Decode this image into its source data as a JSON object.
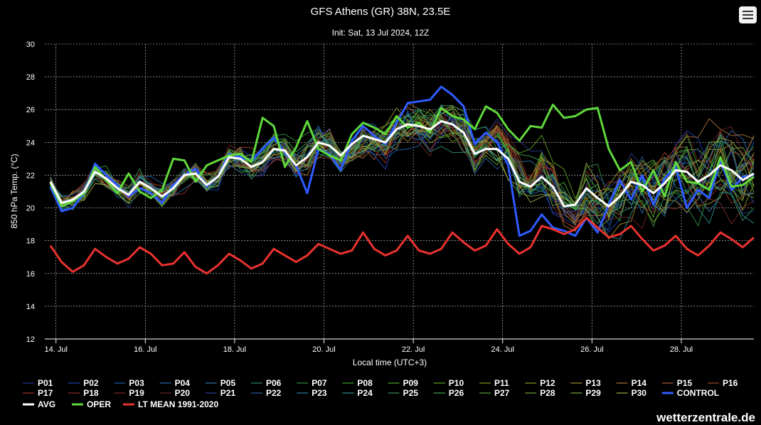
{
  "chart_data": {
    "type": "line",
    "title": "GFS Athens (GR) 38N, 23.5E",
    "subtitle": "Init: Sat, 13 Jul 2024, 12Z",
    "xlabel": "Local time (UTC+3)",
    "ylabel": "850 hPa Temp. (°C)",
    "ylim": [
      12,
      30
    ],
    "yticks": [
      12,
      14,
      16,
      18,
      20,
      22,
      24,
      26,
      28,
      30
    ],
    "xrange_days": [
      13.75,
      29.625
    ],
    "xtick_days": [
      14,
      16,
      18,
      20,
      22,
      24,
      26,
      28
    ],
    "xtick_labels": [
      "14. Jul",
      "16. Jul",
      "18. Jul",
      "20. Jul",
      "22. Jul",
      "24. Jul",
      "26. Jul",
      "28. Jul"
    ],
    "grid": true,
    "legend_position": "bottom",
    "x_start_day": 13.875,
    "x_step_days": 0.25,
    "series_highlight": [
      {
        "name": "AVG",
        "color": "#ffffff",
        "values": [
          21.6,
          20.3,
          20.5,
          21.0,
          22.2,
          21.8,
          21.2,
          20.8,
          21.6,
          21.2,
          20.7,
          21.2,
          22.0,
          22.1,
          21.4,
          21.9,
          23.1,
          23.0,
          22.5,
          22.8,
          23.6,
          23.5,
          22.6,
          23.1,
          24.0,
          23.8,
          23.2,
          23.9,
          24.4,
          24.2,
          24.0,
          24.8,
          25.1,
          25.0,
          24.8,
          25.3,
          25.1,
          24.6,
          23.3,
          23.6,
          23.6,
          23.0,
          21.6,
          21.3,
          21.9,
          21.3,
          20.1,
          20.2,
          21.2,
          20.6,
          20.1,
          20.7,
          21.6,
          21.4,
          20.9,
          21.5,
          22.3,
          22.2,
          21.6,
          22.0,
          22.6,
          22.3,
          21.7,
          22.1
        ]
      },
      {
        "name": "OPER",
        "color": "#5fd93a",
        "values": [
          21.5,
          20.1,
          20.4,
          20.9,
          22.5,
          21.7,
          20.9,
          22.1,
          21.0,
          20.6,
          21.1,
          23.0,
          22.9,
          21.6,
          22.6,
          22.9,
          23.2,
          23.3,
          22.8,
          25.5,
          25.0,
          22.5,
          23.7,
          25.3,
          23.6,
          23.2,
          22.9,
          24.5,
          25.2,
          24.9,
          24.5,
          25.6,
          24.9,
          25.2,
          24.6,
          26.1,
          25.6,
          25.4,
          24.8,
          26.2,
          25.8,
          24.8,
          24.1,
          25.0,
          24.9,
          26.3,
          25.5,
          25.6,
          26.0,
          26.1,
          23.6,
          22.3,
          22.8,
          21.0,
          22.3,
          20.7,
          22.8,
          21.6,
          21.5,
          21.1,
          23.1,
          21.3,
          21.4,
          21.9
        ]
      },
      {
        "name": "CONTROL",
        "color": "#2f5bff",
        "values": [
          21.3,
          19.8,
          20.0,
          20.9,
          22.7,
          22.0,
          21.4,
          20.7,
          21.2,
          20.9,
          20.3,
          21.4,
          22.0,
          22.4,
          21.3,
          21.9,
          23.3,
          23.1,
          22.9,
          23.6,
          24.3,
          23.4,
          22.6,
          20.9,
          23.6,
          23.3,
          22.3,
          24.1,
          25.0,
          24.4,
          23.9,
          25.2,
          26.4,
          26.5,
          26.6,
          27.4,
          26.9,
          26.2,
          23.9,
          24.6,
          24.0,
          22.6,
          18.3,
          18.6,
          19.6,
          18.8,
          18.6,
          18.3,
          19.4,
          18.5,
          20.2,
          21.7,
          20.5,
          22.0,
          20.2,
          21.8,
          22.5,
          20.0,
          21.1,
          20.6,
          22.9,
          21.1,
          21.9,
          22.0
        ]
      },
      {
        "name": "LT MEAN 1991-2020",
        "color": "#e8322f",
        "values": [
          17.7,
          16.7,
          16.1,
          16.5,
          17.5,
          17.0,
          16.6,
          16.9,
          17.6,
          17.2,
          16.5,
          16.6,
          17.3,
          16.4,
          16.0,
          16.5,
          17.2,
          16.8,
          16.3,
          16.6,
          17.5,
          17.1,
          16.7,
          17.1,
          17.8,
          17.5,
          17.2,
          17.4,
          18.5,
          17.5,
          17.1,
          17.4,
          18.3,
          17.4,
          17.2,
          17.5,
          18.5,
          17.9,
          17.4,
          17.7,
          18.7,
          17.8,
          17.2,
          17.6,
          18.9,
          18.7,
          18.4,
          18.7,
          19.4,
          18.8,
          18.2,
          18.4,
          18.9,
          18.1,
          17.4,
          17.7,
          18.3,
          17.5,
          17.1,
          17.7,
          18.5,
          18.1,
          17.6,
          18.2
        ]
      }
    ],
    "member_colors": [
      "#1f3a93",
      "#1e40af",
      "#1e5aa8",
      "#2563a8",
      "#2f6fa0",
      "#2d8a6e",
      "#2e8b3c",
      "#3a9a2a",
      "#4aa028",
      "#5a9c20",
      "#7a9a20",
      "#8a9028",
      "#9a8628",
      "#a07030",
      "#a05a30",
      "#a04a30",
      "#a03a28",
      "#8e2e28",
      "#7a2828",
      "#6a2424",
      "#2a3a8a",
      "#2a5a9a",
      "#2a7a9a",
      "#2a8a8a",
      "#3a8a5a",
      "#3aa04a",
      "#5aa03a",
      "#6aa03a",
      "#7aa040",
      "#9aa040"
    ],
    "legend": {
      "members": [
        "P01",
        "P02",
        "P03",
        "P04",
        "P05",
        "P06",
        "P07",
        "P08",
        "P09",
        "P10",
        "P11",
        "P12",
        "P13",
        "P14",
        "P15",
        "P16",
        "P17",
        "P18",
        "P19",
        "P20",
        "P21",
        "P22",
        "P23",
        "P24",
        "P25",
        "P26",
        "P27",
        "P28",
        "P29",
        "P30"
      ],
      "highlights": [
        "CONTROL",
        "AVG",
        "OPER",
        "LT MEAN 1991-2020"
      ]
    }
  },
  "credit": "wetterzentrale.de",
  "menu_icon": "hamburger-menu-icon"
}
